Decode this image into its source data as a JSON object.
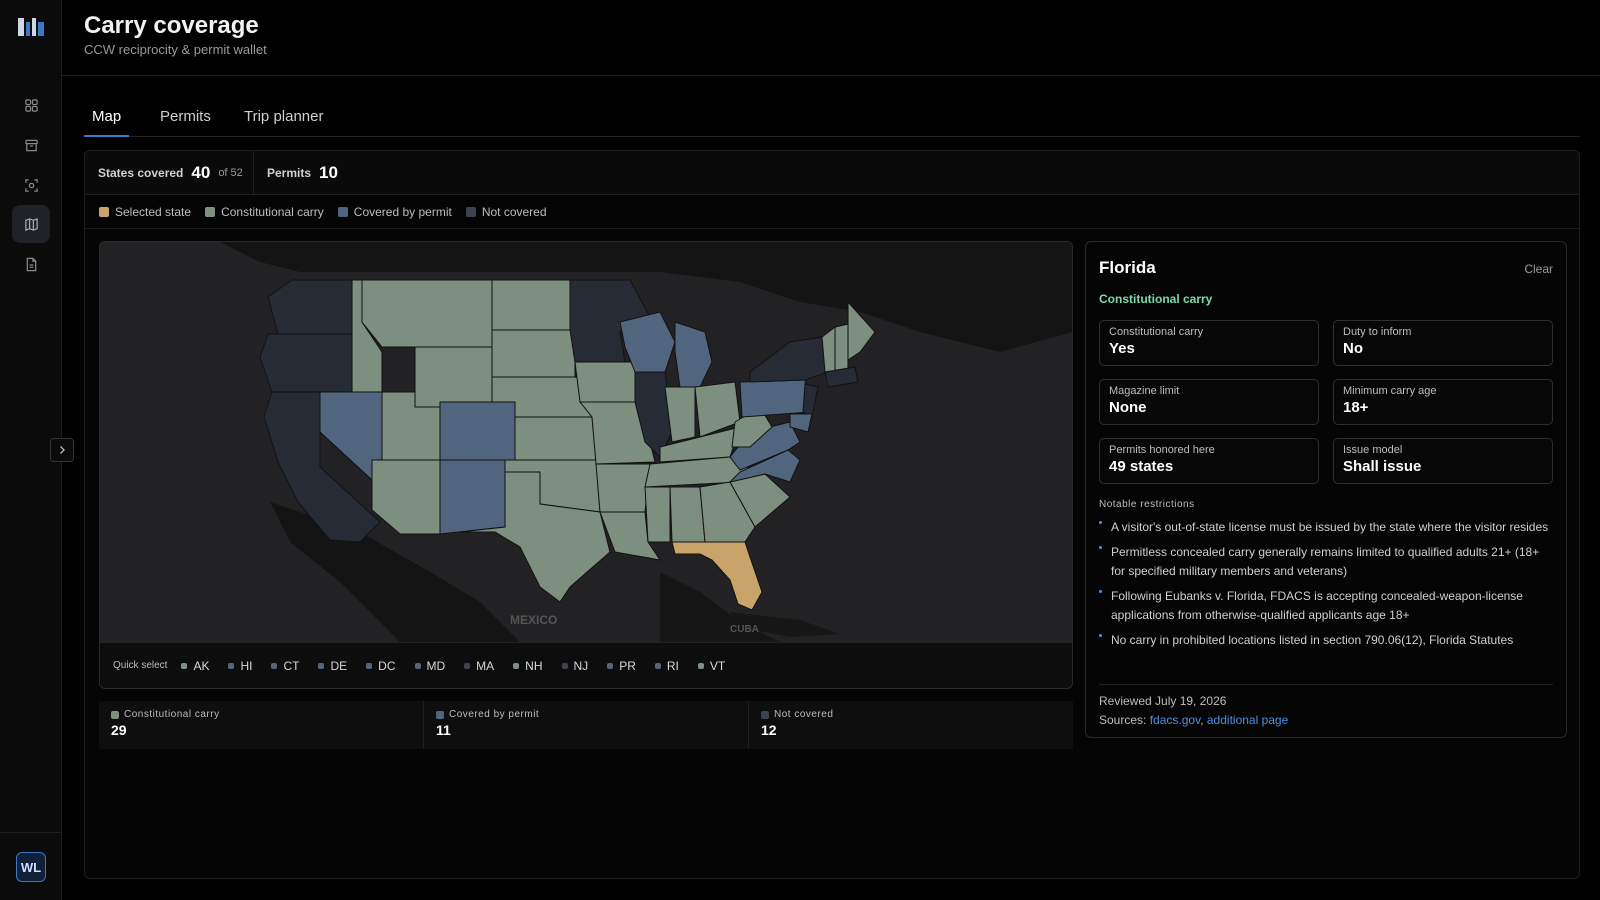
{
  "app": {
    "avatar_initials": "WL"
  },
  "sidebar": {
    "items": [
      {
        "icon": "grid-icon",
        "active": false
      },
      {
        "icon": "archive-icon",
        "active": false
      },
      {
        "icon": "scan-icon",
        "active": false
      },
      {
        "icon": "map-icon",
        "active": true
      },
      {
        "icon": "document-icon",
        "active": false
      }
    ]
  },
  "header": {
    "title": "Carry coverage",
    "subtitle": "CCW reciprocity & permit wallet"
  },
  "tabs": [
    {
      "label": "Map",
      "active": true
    },
    {
      "label": "Permits",
      "active": false
    },
    {
      "label": "Trip planner",
      "active": false
    }
  ],
  "stats": {
    "states_label": "States covered",
    "states_value": "40",
    "states_suffix": "of 52",
    "permits_label": "Permits",
    "permits_value": "10"
  },
  "legend": [
    {
      "label": "Selected state",
      "color": "#c9a46a"
    },
    {
      "label": "Constitutional carry",
      "color": "#7d8f7f"
    },
    {
      "label": "Covered by permit",
      "color": "#52657f"
    },
    {
      "label": "Not covered",
      "color": "#3d434c"
    }
  ],
  "map": {
    "label_mexico": "MEXICO",
    "label_cuba": "CUBA"
  },
  "quick_select": {
    "label": "Quick select",
    "chips": [
      {
        "code": "AK",
        "color": "#7d8f7f"
      },
      {
        "code": "HI",
        "color": "#52657f"
      },
      {
        "code": "CT",
        "color": "#52657f"
      },
      {
        "code": "DE",
        "color": "#52657f"
      },
      {
        "code": "DC",
        "color": "#52657f"
      },
      {
        "code": "MD",
        "color": "#52657f"
      },
      {
        "code": "MA",
        "color": "#3d434c"
      },
      {
        "code": "NH",
        "color": "#7d8f7f"
      },
      {
        "code": "NJ",
        "color": "#3d434c"
      },
      {
        "code": "PR",
        "color": "#52657f"
      },
      {
        "code": "RI",
        "color": "#52657f"
      },
      {
        "code": "VT",
        "color": "#7d8f7f"
      }
    ]
  },
  "summary": [
    {
      "label": "Constitutional carry",
      "value": "29",
      "color": "#7d8f7f"
    },
    {
      "label": "Covered by permit",
      "value": "11",
      "color": "#52657f"
    },
    {
      "label": "Not covered",
      "value": "12",
      "color": "#3d434c"
    }
  ],
  "detail": {
    "state": "Florida",
    "clear_label": "Clear",
    "status": "Constitutional carry",
    "facts": [
      {
        "label": "Constitutional carry",
        "value": "Yes"
      },
      {
        "label": "Duty to inform",
        "value": "No"
      },
      {
        "label": "Magazine limit",
        "value": "None"
      },
      {
        "label": "Minimum carry age",
        "value": "18+"
      },
      {
        "label": "Permits honored here",
        "value": "49 states"
      },
      {
        "label": "Issue model",
        "value": "Shall issue"
      }
    ],
    "restrictions_heading": "Notable restrictions",
    "restrictions": [
      "A visitor's out-of-state license must be issued by the state where the visitor resides",
      "Permitless concealed carry generally remains limited to qualified adults 21+ (18+ for specified military members and veterans)",
      "Following Eubanks v. Florida, FDACS is accepting concealed-weapon-license applications from otherwise-qualified applicants age 18+",
      "No carry in prohibited locations listed in section 790.06(12), Florida Statutes"
    ],
    "reviewed": "Reviewed July 19, 2026",
    "sources_label": "Sources:",
    "source_1": "fdacs.gov",
    "source_sep": ",",
    "source_2": "additional page"
  }
}
